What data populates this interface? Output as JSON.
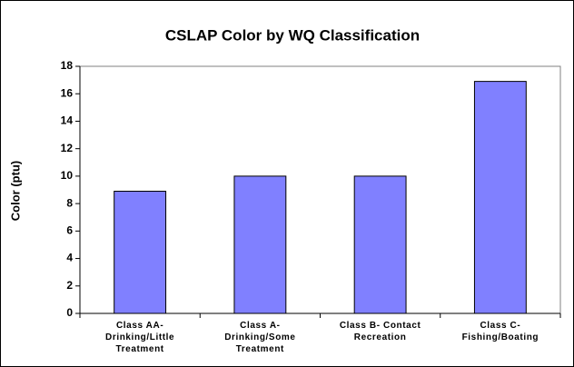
{
  "chart_data": {
    "type": "bar",
    "title": "CSLAP Color by WQ Classification",
    "y_label": "Color (ptu)",
    "categories": [
      "Class AA-\nDrinking/Little\nTreatment",
      "Class A-\nDrinking/Some\nTreatment",
      "Class B- Contact\nRecreation",
      "Class C-\nFishing/Boating"
    ],
    "values": [
      8.9,
      10,
      10,
      16.9
    ],
    "color": "#8080ff",
    "ylim": [
      0,
      18
    ],
    "yticks": [
      0,
      2,
      4,
      6,
      8,
      10,
      12,
      14,
      16,
      18
    ],
    "grid": false
  }
}
